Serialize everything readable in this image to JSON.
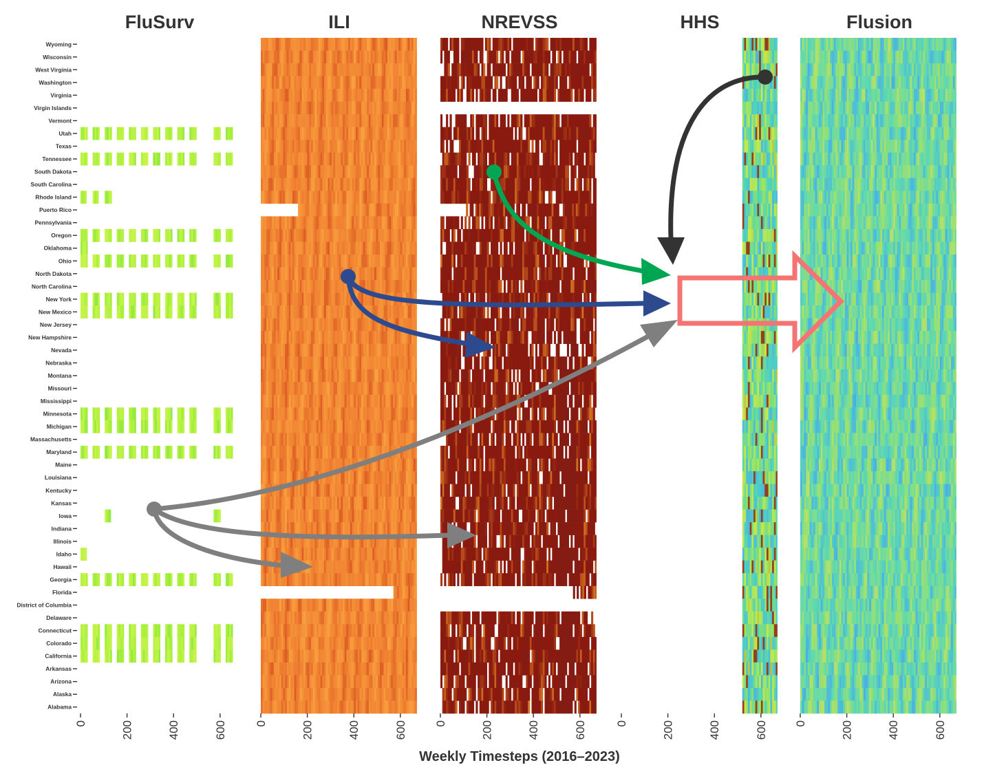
{
  "chart_data": {
    "type": "heatmap",
    "title": "",
    "xlabel": "Weekly Timesteps (2016–2023)",
    "ylabel": "",
    "x_range": [
      0,
      670
    ],
    "x_ticks": [
      0,
      200,
      400,
      600
    ],
    "grid": false,
    "legend": "none",
    "states": [
      "Wyoming",
      "Wisconsin",
      "West Virginia",
      "Washington",
      "Virginia",
      "Virgin Islands",
      "Vermont",
      "Utah",
      "Texas",
      "Tennessee",
      "South Dakota",
      "South Carolina",
      "Rhode Island",
      "Puerto Rico",
      "Pennsylvania",
      "Oregon",
      "Oklahoma",
      "Ohio",
      "North Dakota",
      "North Carolina",
      "New York",
      "New Mexico",
      "New Jersey",
      "New Hampshire",
      "Nevada",
      "Nebraska",
      "Montana",
      "Missouri",
      "Mississippi",
      "Minnesota",
      "Michigan",
      "Massachusetts",
      "Maryland",
      "Maine",
      "Louisiana",
      "Kentucky",
      "Kansas",
      "Iowa",
      "Indiana",
      "Illinois",
      "Idaho",
      "Hawaii",
      "Georgia",
      "Florida",
      "District of Columbia",
      "Delaware",
      "Connecticut",
      "Colorado",
      "California",
      "Arkansas",
      "Arizona",
      "Alaska",
      "Alabama"
    ],
    "panels": [
      {
        "name": "FluSurv",
        "colormap": "green-yellow",
        "coverage": [
          {
            "states": [
              "Utah",
              "Tennessee",
              "Oregon",
              "Ohio",
              "New York",
              "New Mexico",
              "Minnesota",
              "Michigan",
              "Maryland",
              "Georgia",
              "Connecticut",
              "Colorado",
              "California"
            ],
            "weeks": [
              [
                0,
                30
              ],
              [
                52,
                82
              ],
              [
                104,
                134
              ],
              [
                156,
                186
              ],
              [
                208,
                238
              ],
              [
                260,
                290
              ],
              [
                312,
                342
              ],
              [
                364,
                394
              ],
              [
                416,
                446
              ],
              [
                468,
                498
              ],
              [
                572,
                602
              ],
              [
                624,
                654
              ]
            ]
          },
          {
            "states": [
              "Rhode Island"
            ],
            "weeks": [
              [
                0,
                25
              ],
              [
                52,
                77
              ],
              [
                104,
                134
              ]
            ]
          },
          {
            "states": [
              "Oklahoma"
            ],
            "weeks": [
              [
                0,
                30
              ]
            ]
          },
          {
            "states": [
              "Iowa"
            ],
            "weeks": [
              [
                104,
                130
              ],
              [
                572,
                602
              ]
            ]
          },
          {
            "states": [
              "Idaho"
            ],
            "weeks": [
              [
                0,
                26
              ]
            ]
          }
        ]
      },
      {
        "name": "ILI",
        "colormap": "orange-red",
        "coverage": [
          {
            "states": [
              "Puerto Rico"
            ],
            "weeks": [
              [
                160,
                670
              ]
            ]
          },
          {
            "states": [
              "Florida"
            ],
            "weeks": [
              [
                570,
                670
              ]
            ]
          },
          {
            "states": [
              "Virgin Islands"
            ],
            "weeks": [
              [
                0,
                670
              ]
            ]
          },
          {
            "states": [
              "all-other"
            ],
            "weeks": [
              [
                0,
                670
              ]
            ]
          }
        ]
      },
      {
        "name": "NREVSS",
        "colormap": "dark-red",
        "coverage": [
          {
            "states": [
              "Virgin Islands",
              "District of Columbia"
            ],
            "weeks": []
          },
          {
            "states": [
              "Puerto Rico"
            ],
            "weeks": [
              [
                110,
                670
              ]
            ]
          },
          {
            "states": [
              "Florida"
            ],
            "weeks": [
              [
                570,
                670
              ]
            ]
          },
          {
            "states": [
              "all-other"
            ],
            "weeks": [
              [
                0,
                670
              ]
            ]
          }
        ]
      },
      {
        "name": "HHS",
        "colormap": "turbo-like",
        "coverage": [
          {
            "states": [
              "all"
            ],
            "weeks": [
              [
                520,
                670
              ]
            ]
          }
        ]
      },
      {
        "name": "Flusion",
        "colormap": "blue-green",
        "coverage": [
          {
            "states": [
              "all"
            ],
            "weeks": [
              [
                0,
                670
              ]
            ]
          }
        ]
      }
    ],
    "annotations": [
      {
        "from": "HHS",
        "to": "Flusion",
        "type": "curved-arrow",
        "color": "#333333"
      },
      {
        "from": "NREVSS",
        "to": "Flusion",
        "type": "curved-arrow",
        "color": "#00A651"
      },
      {
        "from": "ILI",
        "to": "Flusion",
        "type": "curved-arrow",
        "color": "#2E4A8E"
      },
      {
        "from": "ILI",
        "to": "NREVSS",
        "type": "curved-arrow",
        "color": "#2E4A8E"
      },
      {
        "from": "FluSurv",
        "to": "Flusion",
        "type": "curved-arrow",
        "color": "#7F7F7F"
      },
      {
        "from": "FluSurv",
        "to": "NREVSS",
        "type": "curved-arrow",
        "color": "#7F7F7F"
      },
      {
        "from": "FluSurv",
        "to": "ILI",
        "type": "curved-arrow",
        "color": "#7F7F7F"
      },
      {
        "type": "block-arrow",
        "into": "Flusion",
        "color": "#F47474"
      }
    ]
  }
}
